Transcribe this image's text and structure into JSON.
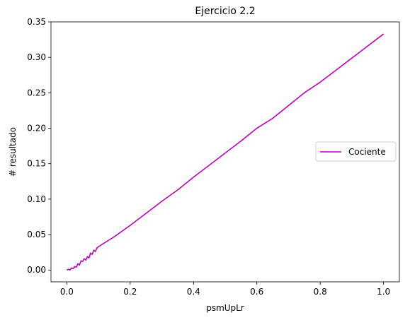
{
  "chart_data": {
    "type": "line",
    "title": "Ejercicio 2.2",
    "xlabel": "psmUpLr",
    "ylabel": "# resultado",
    "xlim": [
      -0.05,
      1.05
    ],
    "ylim": [
      -0.0167,
      0.35
    ],
    "xticks": [
      0.0,
      0.2,
      0.4,
      0.6,
      0.8,
      1.0
    ],
    "xtick_labels": [
      "0.0",
      "0.2",
      "0.4",
      "0.6",
      "0.8",
      "1.0"
    ],
    "yticks": [
      0.0,
      0.05,
      0.1,
      0.15,
      0.2,
      0.25,
      0.3,
      0.35
    ],
    "ytick_labels": [
      "0.00",
      "0.05",
      "0.10",
      "0.15",
      "0.20",
      "0.25",
      "0.30",
      "0.35"
    ],
    "grid": false,
    "legend_position": "center-right",
    "series": [
      {
        "name": "Cociente",
        "color": "#bf00bf",
        "x": [
          0.0,
          0.005,
          0.01,
          0.015,
          0.02,
          0.025,
          0.03,
          0.035,
          0.04,
          0.045,
          0.05,
          0.055,
          0.06,
          0.065,
          0.07,
          0.075,
          0.08,
          0.085,
          0.09,
          0.095,
          0.1,
          0.15,
          0.2,
          0.25,
          0.3,
          0.35,
          0.4,
          0.45,
          0.5,
          0.55,
          0.6,
          0.65,
          0.7,
          0.75,
          0.8,
          0.85,
          0.9,
          0.95,
          1.0
        ],
        "y": [
          0.0,
          0.001,
          0.0,
          0.003,
          0.002,
          0.005,
          0.004,
          0.009,
          0.007,
          0.013,
          0.012,
          0.016,
          0.014,
          0.019,
          0.017,
          0.024,
          0.022,
          0.028,
          0.026,
          0.031,
          0.033,
          0.047,
          0.063,
          0.08,
          0.097,
          0.113,
          0.131,
          0.148,
          0.165,
          0.182,
          0.2,
          0.214,
          0.232,
          0.25,
          0.265,
          0.282,
          0.299,
          0.316,
          0.333
        ]
      }
    ]
  }
}
